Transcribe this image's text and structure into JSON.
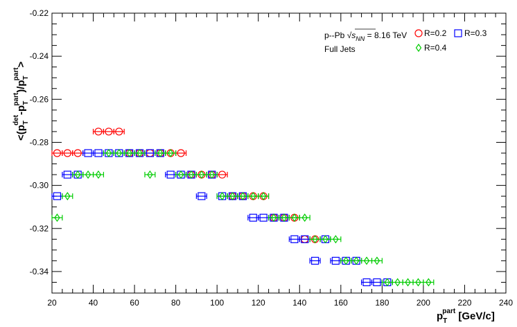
{
  "chart_data": {
    "type": "scatter",
    "title": "",
    "xlim": [
      20,
      240
    ],
    "ylim": [
      -0.35,
      -0.22
    ],
    "x_ticks": [
      "20",
      "40",
      "60",
      "80",
      "100",
      "120",
      "140",
      "160",
      "180",
      "200",
      "220",
      "240"
    ],
    "y_ticks": [
      "-0.34",
      "-0.32",
      "-0.30",
      "-0.28",
      "-0.26",
      "-0.24",
      "-0.22"
    ],
    "xlabel": {
      "p": "p",
      "sub": "T",
      "sup": "part",
      "unit": " [GeV/c]"
    },
    "ylabel": {
      "open": "<(p",
      "sub1": "T",
      "sup1": "det",
      "mid": "-p",
      "sub2": "T",
      "sup2": "part",
      "mid2": ")/p",
      "sub3": "T",
      "sup3": "part",
      "close": ">"
    },
    "annotation": {
      "line1_prefix": "p--Pb ",
      "line1_sqrt_s": "s",
      "line1_sub": "NN",
      "line1_suffix": " = 8.16 TeV",
      "line2": "Full Jets"
    },
    "legend_position": "top-right",
    "series": [
      {
        "name": "R=0.2",
        "marker": "circle",
        "color": "#ff0000",
        "xerr": 2.5,
        "points": [
          {
            "x": 22.5,
            "y": -0.285
          },
          {
            "x": 27.5,
            "y": -0.285
          },
          {
            "x": 32.5,
            "y": -0.285
          },
          {
            "x": 42.5,
            "y": -0.275
          },
          {
            "x": 47.5,
            "y": -0.275
          },
          {
            "x": 52.5,
            "y": -0.275
          },
          {
            "x": 57.5,
            "y": -0.285
          },
          {
            "x": 62.5,
            "y": -0.285
          },
          {
            "x": 67.5,
            "y": -0.285
          },
          {
            "x": 72.5,
            "y": -0.285
          },
          {
            "x": 77.5,
            "y": -0.285
          },
          {
            "x": 82.5,
            "y": -0.285
          },
          {
            "x": 87.5,
            "y": -0.295
          },
          {
            "x": 92.5,
            "y": -0.295
          },
          {
            "x": 97.5,
            "y": -0.295
          },
          {
            "x": 102.5,
            "y": -0.295
          },
          {
            "x": 107.5,
            "y": -0.305
          },
          {
            "x": 112.5,
            "y": -0.305
          },
          {
            "x": 117.5,
            "y": -0.305
          },
          {
            "x": 122.5,
            "y": -0.305
          },
          {
            "x": 127.5,
            "y": -0.315
          },
          {
            "x": 132.5,
            "y": -0.315
          },
          {
            "x": 137.5,
            "y": -0.315
          },
          {
            "x": 142.5,
            "y": -0.325
          },
          {
            "x": 147.5,
            "y": -0.325
          }
        ]
      },
      {
        "name": "R=0.3",
        "marker": "square",
        "color": "#0000ff",
        "xerr": 2.5,
        "points": [
          {
            "x": 22.5,
            "y": -0.305
          },
          {
            "x": 27.5,
            "y": -0.295
          },
          {
            "x": 32.5,
            "y": -0.295
          },
          {
            "x": 37.5,
            "y": -0.285
          },
          {
            "x": 42.5,
            "y": -0.285
          },
          {
            "x": 47.5,
            "y": -0.285
          },
          {
            "x": 52.5,
            "y": -0.285
          },
          {
            "x": 57.5,
            "y": -0.285
          },
          {
            "x": 62.5,
            "y": -0.285
          },
          {
            "x": 67.5,
            "y": -0.285
          },
          {
            "x": 72.5,
            "y": -0.285
          },
          {
            "x": 77.5,
            "y": -0.295
          },
          {
            "x": 82.5,
            "y": -0.295
          },
          {
            "x": 87.5,
            "y": -0.295
          },
          {
            "x": 92.5,
            "y": -0.305
          },
          {
            "x": 97.5,
            "y": -0.295
          },
          {
            "x": 102.5,
            "y": -0.305
          },
          {
            "x": 107.5,
            "y": -0.305
          },
          {
            "x": 112.5,
            "y": -0.305
          },
          {
            "x": 117.5,
            "y": -0.315
          },
          {
            "x": 122.5,
            "y": -0.315
          },
          {
            "x": 127.5,
            "y": -0.315
          },
          {
            "x": 132.5,
            "y": -0.315
          },
          {
            "x": 137.5,
            "y": -0.325
          },
          {
            "x": 142.5,
            "y": -0.325
          },
          {
            "x": 147.5,
            "y": -0.335
          },
          {
            "x": 152.5,
            "y": -0.325
          },
          {
            "x": 157.5,
            "y": -0.335
          },
          {
            "x": 162.5,
            "y": -0.335
          },
          {
            "x": 167.5,
            "y": -0.335
          },
          {
            "x": 172.5,
            "y": -0.345
          },
          {
            "x": 177.5,
            "y": -0.345
          },
          {
            "x": 182.5,
            "y": -0.345
          }
        ]
      },
      {
        "name": "R=0.4",
        "marker": "diamond",
        "color": "#00cc00",
        "xerr": 2.5,
        "points": [
          {
            "x": 22.5,
            "y": -0.315
          },
          {
            "x": 27.5,
            "y": -0.305
          },
          {
            "x": 32.5,
            "y": -0.295
          },
          {
            "x": 37.5,
            "y": -0.295
          },
          {
            "x": 42.5,
            "y": -0.295
          },
          {
            "x": 47.5,
            "y": -0.285
          },
          {
            "x": 52.5,
            "y": -0.285
          },
          {
            "x": 57.5,
            "y": -0.285
          },
          {
            "x": 62.5,
            "y": -0.285
          },
          {
            "x": 67.5,
            "y": -0.295
          },
          {
            "x": 72.5,
            "y": -0.285
          },
          {
            "x": 77.5,
            "y": -0.285
          },
          {
            "x": 82.5,
            "y": -0.295
          },
          {
            "x": 87.5,
            "y": -0.295
          },
          {
            "x": 92.5,
            "y": -0.295
          },
          {
            "x": 97.5,
            "y": -0.295
          },
          {
            "x": 102.5,
            "y": -0.305
          },
          {
            "x": 107.5,
            "y": -0.305
          },
          {
            "x": 112.5,
            "y": -0.305
          },
          {
            "x": 117.5,
            "y": -0.305
          },
          {
            "x": 122.5,
            "y": -0.305
          },
          {
            "x": 127.5,
            "y": -0.315
          },
          {
            "x": 132.5,
            "y": -0.315
          },
          {
            "x": 137.5,
            "y": -0.315
          },
          {
            "x": 142.5,
            "y": -0.315
          },
          {
            "x": 147.5,
            "y": -0.325
          },
          {
            "x": 152.5,
            "y": -0.325
          },
          {
            "x": 157.5,
            "y": -0.325
          },
          {
            "x": 162.5,
            "y": -0.335
          },
          {
            "x": 167.5,
            "y": -0.335
          },
          {
            "x": 172.5,
            "y": -0.335
          },
          {
            "x": 177.5,
            "y": -0.335
          },
          {
            "x": 182.5,
            "y": -0.345
          },
          {
            "x": 187.5,
            "y": -0.345
          },
          {
            "x": 192.5,
            "y": -0.345
          },
          {
            "x": 197.5,
            "y": -0.345
          },
          {
            "x": 202.5,
            "y": -0.345
          }
        ]
      }
    ]
  }
}
